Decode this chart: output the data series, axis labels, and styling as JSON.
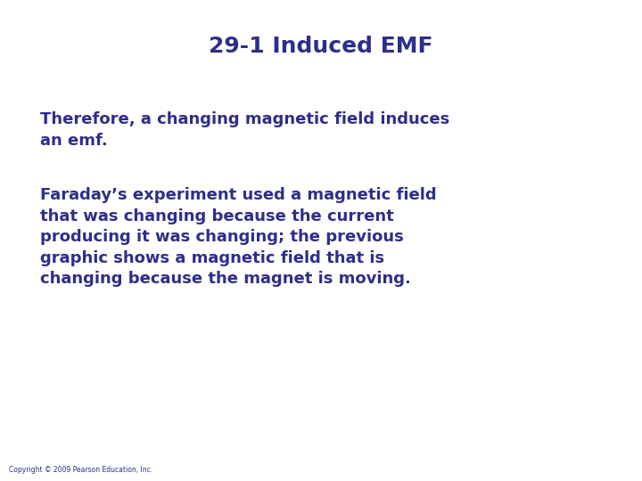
{
  "title": "29-1 Induced EMF",
  "title_color": "#2E2E8B",
  "title_fontsize": 18,
  "title_fontweight": "bold",
  "background_color": "#FFFFFF",
  "text_color": "#2E2E8B",
  "paragraph1": "Therefore, a changing magnetic field induces\nan emf.",
  "paragraph2": "Faraday’s experiment used a magnetic field\nthat was changing because the current\nproducing it was changing; the previous\ngraphic shows a magnetic field that is\nchanging because the magnet is moving.",
  "paragraph_fontsize": 13,
  "paragraph_fontweight": "bold",
  "copyright": "Copyright © 2009 Pearson Education, Inc.",
  "copyright_fontsize": 5.5,
  "copyright_color": "#2E2E8B"
}
